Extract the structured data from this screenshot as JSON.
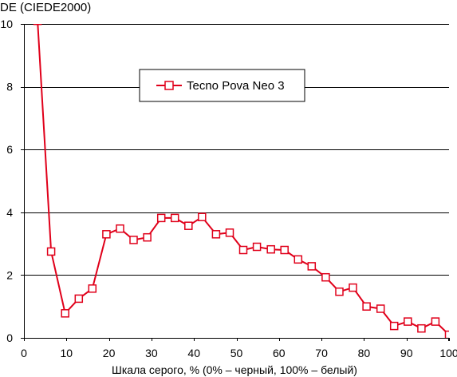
{
  "chart_data": {
    "type": "line",
    "ylabel": "DE (CIEDE2000)",
    "xlabel": "Шкала серого, % (0% – черный, 100% – белый)",
    "xlim": [
      0,
      100
    ],
    "ylim": [
      0,
      10
    ],
    "x_ticks": [
      0,
      10,
      20,
      30,
      40,
      50,
      60,
      70,
      80,
      90,
      100
    ],
    "y_ticks": [
      0,
      2,
      4,
      6,
      8,
      10
    ],
    "grid": "horizontal",
    "legend_position": "upper-center",
    "series": [
      {
        "name": "Tecno Pova Neo 3",
        "color": "#e0001a",
        "marker": "open-square",
        "points": [
          [
            3.2,
            10.1
          ],
          [
            6.4,
            2.75
          ],
          [
            9.7,
            0.78
          ],
          [
            12.9,
            1.25
          ],
          [
            16.1,
            1.57
          ],
          [
            19.4,
            3.3
          ],
          [
            22.6,
            3.48
          ],
          [
            25.8,
            3.12
          ],
          [
            29.0,
            3.2
          ],
          [
            32.3,
            3.82
          ],
          [
            35.5,
            3.82
          ],
          [
            38.7,
            3.57
          ],
          [
            41.9,
            3.85
          ],
          [
            45.2,
            3.3
          ],
          [
            48.4,
            3.35
          ],
          [
            51.6,
            2.8
          ],
          [
            54.8,
            2.9
          ],
          [
            58.1,
            2.82
          ],
          [
            61.3,
            2.8
          ],
          [
            64.5,
            2.5
          ],
          [
            67.7,
            2.28
          ],
          [
            71.0,
            1.93
          ],
          [
            74.2,
            1.47
          ],
          [
            77.4,
            1.6
          ],
          [
            80.6,
            1.0
          ],
          [
            83.9,
            0.93
          ],
          [
            87.1,
            0.38
          ],
          [
            90.3,
            0.52
          ],
          [
            93.5,
            0.3
          ],
          [
            96.8,
            0.52
          ],
          [
            100.0,
            0.1
          ]
        ]
      }
    ]
  }
}
